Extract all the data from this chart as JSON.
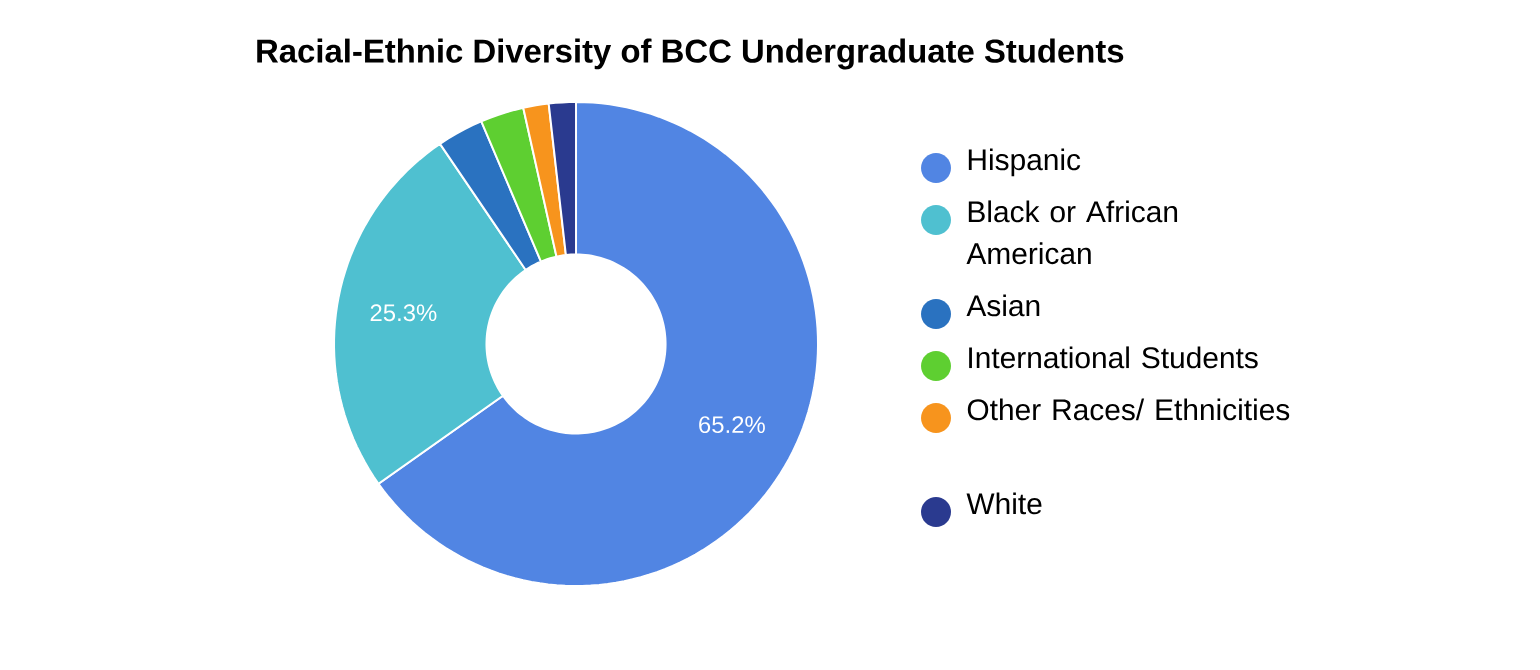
{
  "chart_data": {
    "type": "donut",
    "title": "Racial-Ethnic Diversity of BCC Undergraduate Students",
    "categories": [
      "Hispanic",
      "Black or African American",
      "Asian",
      "International Students",
      "Other Races/ Ethnicities",
      "White"
    ],
    "values": [
      65.2,
      25.3,
      3.1,
      2.9,
      1.7,
      1.8
    ],
    "value_labels": [
      "65.2%",
      "25.3%",
      null,
      null,
      null,
      null
    ],
    "colors": [
      "#5185e3",
      "#4fc0d0",
      "#2a72c0",
      "#5ecf31",
      "#f7941d",
      "#2a3a8f"
    ],
    "legend": "right"
  }
}
